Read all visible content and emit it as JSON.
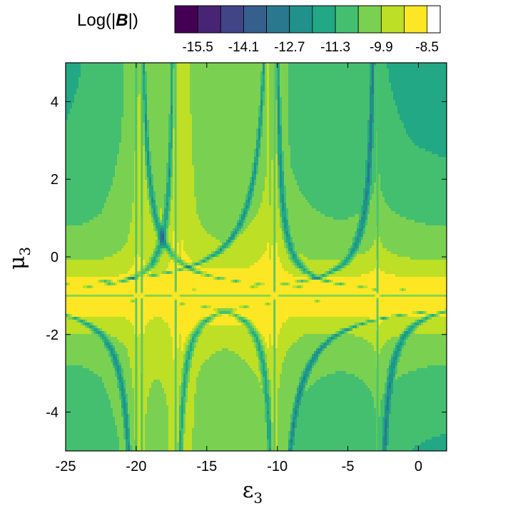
{
  "chart_data": {
    "type": "heatmap",
    "title": "Log(|B|)",
    "title_parts": {
      "prefix": "Log(|",
      "symbol": "B",
      "suffix": "|)"
    },
    "xlabel": {
      "symbol": "ε",
      "subscript": "3"
    },
    "ylabel": {
      "symbol": "μ",
      "subscript": "3"
    },
    "xlim": [
      -25,
      2
    ],
    "ylim": [
      -5,
      5
    ],
    "x_ticks": [
      -25,
      -20,
      -15,
      -10,
      -5,
      0
    ],
    "x_tick_labels": [
      "-25",
      "-20",
      "-15",
      "-10",
      "-5",
      "0"
    ],
    "y_ticks": [
      -4,
      -2,
      0,
      2,
      4
    ],
    "y_tick_labels": [
      "-4",
      "-2",
      "0",
      "2",
      "4"
    ],
    "colorbar": {
      "levels": [
        -16.2,
        -15.5,
        -14.8,
        -14.1,
        -13.4,
        -12.7,
        -12.0,
        -11.3,
        -10.6,
        -9.9,
        -9.2,
        -8.5,
        -8.1
      ],
      "tick_values": [
        -15.5,
        -14.1,
        -12.7,
        -11.3,
        -9.9,
        -8.5
      ],
      "tick_labels": [
        "-15.5",
        "-14.1",
        "-12.7",
        "-11.3",
        "-9.9",
        "-8.5"
      ],
      "colors": [
        "#440154",
        "#482475",
        "#414487",
        "#355f8d",
        "#2a788e",
        "#21918c",
        "#22a884",
        "#44bf70",
        "#7ad151",
        "#bddf26",
        "#fde725"
      ],
      "orientation": "horizontal",
      "placement": "top"
    },
    "resonance_x": [
      -20,
      -19.6,
      -17.2,
      -10.2,
      -2.9
    ],
    "resonance_y": -1.0,
    "background_level": -12.4
  }
}
